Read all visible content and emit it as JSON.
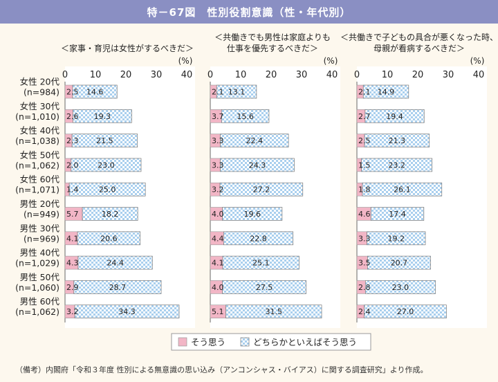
{
  "figure": {
    "number": "特－67図",
    "title": "性別役割意識（性・年代別）"
  },
  "colors": {
    "soo_omou": "#f2b6c6",
    "soo_omou_border": "#d0708a",
    "dochiraka_a": "#ffffff",
    "dochiraka_b": "#a9cfee",
    "panel_bg": "#ffffff",
    "title_bar": "#8a8fc3"
  },
  "unit_label": "(%)",
  "source": "（備考）内閣府「令和３年度 性別による無意識の思い込み（アンコンシャス・バイアス）に関する調査研究」より作成。",
  "chart_data": {
    "type": "bar",
    "orientation": "horizontal",
    "stacked": true,
    "xlim": [
      0,
      40
    ],
    "xticks": [
      0,
      10,
      20,
      30,
      40
    ],
    "categories": [
      {
        "group": "女性 20代",
        "n": "(n=984)"
      },
      {
        "group": "女性 30代",
        "n": "(n=1,010)"
      },
      {
        "group": "女性 40代",
        "n": "(n=1,038)"
      },
      {
        "group": "女性 50代",
        "n": "(n=1,062)"
      },
      {
        "group": "女性 60代",
        "n": "(n=1,071)"
      },
      {
        "group": "男性 20代",
        "n": "(n=949)"
      },
      {
        "group": "男性 30代",
        "n": "(n=969)"
      },
      {
        "group": "男性 40代",
        "n": "(n=1,029)"
      },
      {
        "group": "男性 50代",
        "n": "(n=1,060)"
      },
      {
        "group": "男性 60代",
        "n": "(n=1,062)"
      }
    ],
    "legend": [
      "そう思う",
      "どちらかといえばそう思う"
    ],
    "legend_position": "bottom",
    "panels": [
      {
        "title_lines": [
          "＜家事・育児は女性がするべきだ＞"
        ],
        "series": [
          {
            "name": "そう思う",
            "values": [
              2.5,
              2.6,
              2.3,
              2.0,
              1.4,
              5.7,
              4.1,
              4.3,
              2.9,
              3.2
            ],
            "labels": [
              "2.5",
              "2.6",
              "2.3",
              "2.0",
              "1.4",
              "5.7",
              "4.1",
              "4.3",
              "2.9",
              "3.2"
            ]
          },
          {
            "name": "どちらかといえばそう思う",
            "values": [
              14.6,
              19.3,
              21.5,
              23.0,
              25.0,
              18.2,
              20.6,
              24.4,
              28.7,
              34.3
            ],
            "labels": [
              "14.6",
              "19.3",
              "21.5",
              "23.0",
              "25.0",
              "18.2",
              "20.6",
              "24.4",
              "28.7",
              "34.3"
            ]
          }
        ]
      },
      {
        "title_lines": [
          "＜共働きでも男性は家庭よりも",
          "仕事を優先するべきだ＞"
        ],
        "series": [
          {
            "name": "そう思う",
            "values": [
              2.1,
              3.7,
              3.3,
              3.3,
              3.2,
              4.0,
              4.4,
              4.1,
              4.0,
              5.1
            ],
            "labels": [
              "2.1",
              "3.7",
              "3.3",
              "3.3",
              "3.2",
              "4.0",
              "4.4",
              "4.1",
              "4.0",
              "5.1"
            ]
          },
          {
            "name": "どちらかといえばそう思う",
            "values": [
              13.1,
              15.6,
              22.4,
              24.3,
              27.2,
              19.6,
              22.8,
              25.1,
              27.5,
              31.5
            ],
            "labels": [
              "13.1",
              "15.6",
              "22.4",
              "24.3",
              "27.2",
              "19.6",
              "22.8",
              "25.1",
              "27.5",
              "31.5"
            ]
          }
        ]
      },
      {
        "title_lines": [
          "＜共働きで子どもの具合が悪くなった時、",
          "母親が看病するべきだ＞"
        ],
        "series": [
          {
            "name": "そう思う",
            "values": [
              2.1,
              2.7,
              2.5,
              1.5,
              1.8,
              4.6,
              3.3,
              3.5,
              2.8,
              2.4
            ],
            "labels": [
              "2.1",
              "2.7",
              "2.5",
              "1.5",
              "1.8",
              "4.6",
              "3.3",
              "3.5",
              "2.8",
              "2.4"
            ]
          },
          {
            "name": "どちらかといえばそう思う",
            "values": [
              14.9,
              19.4,
              21.3,
              23.2,
              26.1,
              17.4,
              19.2,
              20.7,
              23.0,
              27.0
            ],
            "labels": [
              "14.9",
              "19.4",
              "21.3",
              "23.2",
              "26.1",
              "17.4",
              "19.2",
              "20.7",
              "23.0",
              "27.0"
            ]
          }
        ]
      }
    ]
  }
}
